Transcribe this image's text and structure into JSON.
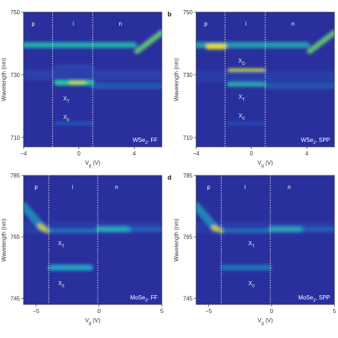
{
  "figure": {
    "panels": [
      {
        "id": "a",
        "panel_label": "",
        "material_label": "WSe₂, FF",
        "regions": [
          "p",
          "i",
          "n"
        ],
        "region_x": [
          -3.3,
          -0.4,
          3.0
        ],
        "xlim": [
          -4,
          6
        ],
        "ylim": [
          707,
          750
        ],
        "xticks": [
          -4,
          0,
          4
        ],
        "yticks": [
          710,
          730,
          750
        ],
        "xlabel": "V_g (V)",
        "ylabel": "Wavelength (nm)",
        "dashed_x": [
          -1.9,
          1.0
        ],
        "annotations": [
          {
            "text": "X_T",
            "x": -0.9,
            "y": 722.5
          },
          {
            "text": "X_0",
            "x": -0.9,
            "y": 716.5
          }
        ],
        "bands": [
          {
            "x0": -4,
            "x1": 4.0,
            "y0": 739.5,
            "y1": 739.5,
            "w": 0.85,
            "a": 0.85,
            "c": "#21c2ad"
          },
          {
            "x0": 4.2,
            "x1": 6.0,
            "y0": 737.5,
            "y1": 743.5,
            "w": 0.8,
            "a": 0.85,
            "c": "#6bd46e"
          },
          {
            "x0": -1.6,
            "x1": 0.9,
            "y0": 727.5,
            "y1": 727.5,
            "w": 0.8,
            "a": 0.95,
            "c": "#22d2a0"
          },
          {
            "x0": -0.6,
            "x1": 0.4,
            "y0": 727.5,
            "y1": 727.5,
            "w": 0.5,
            "a": 0.9,
            "c": "#c8e23c"
          },
          {
            "x0": 1.0,
            "x1": 6.0,
            "y0": 726.5,
            "y1": 726.5,
            "w": 0.9,
            "a": 0.45,
            "c": "#1d8fc5"
          },
          {
            "x0": -4,
            "x1": 6.0,
            "y0": 730.0,
            "y1": 730.0,
            "w": 1.6,
            "a": 0.25,
            "c": "#2c6fd0"
          },
          {
            "x0": -1.6,
            "x1": 0.9,
            "y0": 714.5,
            "y1": 714.5,
            "w": 0.6,
            "a": 0.45,
            "c": "#1a7fd0"
          },
          {
            "x0": -1.6,
            "x1": 0.9,
            "y0": 732.5,
            "y1": 732.5,
            "w": 0.7,
            "a": 0.3,
            "c": "#2c7ad4"
          }
        ]
      },
      {
        "id": "b",
        "panel_label": "b",
        "material_label": "WSe₂, SPP",
        "regions": [
          "p",
          "i",
          "n"
        ],
        "region_x": [
          -3.3,
          -0.4,
          3.0
        ],
        "xlim": [
          -4,
          6
        ],
        "ylim": [
          707,
          750
        ],
        "xticks": [
          -4,
          0,
          4
        ],
        "yticks": [
          710,
          730,
          750
        ],
        "xlabel": "V_g (V)",
        "ylabel": "Wavelength (nm)",
        "dashed_x": [
          -1.9,
          1.0
        ],
        "annotations": [
          {
            "text": "X_D",
            "x": -0.7,
            "y": 734.5
          },
          {
            "text": "X_T",
            "x": -0.7,
            "y": 723.0
          },
          {
            "text": "X_0",
            "x": -0.7,
            "y": 717.0
          }
        ],
        "bands": [
          {
            "x0": -4,
            "x1": 4.0,
            "y0": 739.5,
            "y1": 739.5,
            "w": 0.9,
            "a": 0.8,
            "c": "#1fb8b0"
          },
          {
            "x0": -3.1,
            "x1": -2.0,
            "y0": 739.0,
            "y1": 739.0,
            "w": 0.8,
            "a": 0.95,
            "c": "#f2e21a"
          },
          {
            "x0": 4.2,
            "x1": 6.0,
            "y0": 737.5,
            "y1": 743.5,
            "w": 0.8,
            "a": 0.85,
            "c": "#6bd46e"
          },
          {
            "x0": -1.6,
            "x1": 0.9,
            "y0": 731.5,
            "y1": 731.5,
            "w": 0.45,
            "a": 0.95,
            "c": "#d9ea3a"
          },
          {
            "x0": -1.6,
            "x1": 0.9,
            "y0": 727.0,
            "y1": 727.0,
            "w": 0.7,
            "a": 0.85,
            "c": "#28c0b0"
          },
          {
            "x0": 1.0,
            "x1": 6.0,
            "y0": 726.5,
            "y1": 726.5,
            "w": 0.9,
            "a": 0.4,
            "c": "#1d8fc5"
          },
          {
            "x0": -4,
            "x1": 6.0,
            "y0": 729.5,
            "y1": 729.5,
            "w": 1.6,
            "a": 0.22,
            "c": "#2c6fd0"
          },
          {
            "x0": -1.6,
            "x1": 0.9,
            "y0": 714.5,
            "y1": 714.5,
            "w": 0.5,
            "a": 0.35,
            "c": "#1a7fd0"
          }
        ]
      },
      {
        "id": "c",
        "panel_label": "",
        "material_label": "MoSe₂, FF",
        "regions": [
          "p",
          "i",
          "n"
        ],
        "region_x": [
          -5.0,
          -2.1,
          1.4
        ],
        "xlim": [
          -6,
          5
        ],
        "ylim": [
          743,
          785
        ],
        "xticks": [
          -5,
          0,
          5
        ],
        "yticks": [
          745,
          765,
          785
        ],
        "xlabel": "V_g (V)",
        "ylabel": "Wavelength (nm)",
        "dashed_x": [
          -4.0,
          -0.1
        ],
        "annotations": [
          {
            "text": "X_T",
            "x": -3.0,
            "y": 763.0
          },
          {
            "text": "X_0",
            "x": -3.0,
            "y": 750.0
          }
        ],
        "bands": [
          {
            "x0": -6.0,
            "x1": -4.5,
            "y0": 775.0,
            "y1": 768.0,
            "w": 1.2,
            "a": 0.7,
            "c": "#20a9c2"
          },
          {
            "x0": -4.7,
            "x1": -4.1,
            "y0": 768.5,
            "y1": 767.0,
            "w": 0.8,
            "a": 0.95,
            "c": "#f2e21a"
          },
          {
            "x0": -4.0,
            "x1": -0.2,
            "y0": 767.0,
            "y1": 767.0,
            "w": 0.7,
            "a": 0.55,
            "c": "#1b9fc4"
          },
          {
            "x0": 0.0,
            "x1": 2.3,
            "y0": 767.5,
            "y1": 767.5,
            "w": 0.9,
            "a": 0.9,
            "c": "#29c3b4"
          },
          {
            "x0": 2.3,
            "x1": 5.0,
            "y0": 767.5,
            "y1": 767.5,
            "w": 0.7,
            "a": 0.45,
            "c": "#1a8fc6"
          },
          {
            "x0": -3.8,
            "x1": -0.7,
            "y0": 755.0,
            "y1": 755.0,
            "w": 0.9,
            "a": 0.85,
            "c": "#1fb6c6"
          },
          {
            "x0": -6.0,
            "x1": 5.0,
            "y0": 768.0,
            "y1": 768.0,
            "w": 1.8,
            "a": 0.2,
            "c": "#2c6fd0"
          }
        ]
      },
      {
        "id": "d",
        "panel_label": "d",
        "material_label": "MoSe₂, SPP",
        "regions": [
          "p",
          "i",
          "n"
        ],
        "region_x": [
          -5.0,
          -2.1,
          1.4
        ],
        "xlim": [
          -6,
          5
        ],
        "ylim": [
          743,
          785
        ],
        "xticks": [
          -5,
          0,
          5
        ],
        "yticks": [
          745,
          765,
          785
        ],
        "xlabel": "V_g (V)",
        "ylabel": "Wavelength (nm)",
        "dashed_x": [
          -4.0,
          -0.1
        ],
        "annotations": [
          {
            "text": "X_T",
            "x": -1.6,
            "y": 763.0
          },
          {
            "text": "X_0",
            "x": -1.6,
            "y": 750.0
          }
        ],
        "bands": [
          {
            "x0": -6.0,
            "x1": -4.5,
            "y0": 775.0,
            "y1": 768.0,
            "w": 1.2,
            "a": 0.7,
            "c": "#20a9c2"
          },
          {
            "x0": -4.6,
            "x1": -4.0,
            "y0": 768.0,
            "y1": 767.0,
            "w": 0.8,
            "a": 0.95,
            "c": "#f2e21a"
          },
          {
            "x0": -4.0,
            "x1": -0.2,
            "y0": 767.0,
            "y1": 767.0,
            "w": 0.7,
            "a": 0.5,
            "c": "#1b9fc4"
          },
          {
            "x0": 0.0,
            "x1": 2.3,
            "y0": 767.5,
            "y1": 767.5,
            "w": 0.9,
            "a": 0.85,
            "c": "#29c3b4"
          },
          {
            "x0": 2.3,
            "x1": 5.0,
            "y0": 767.5,
            "y1": 767.5,
            "w": 0.7,
            "a": 0.45,
            "c": "#1a8fc6"
          },
          {
            "x0": -3.8,
            "x1": -0.2,
            "y0": 755.0,
            "y1": 755.0,
            "w": 0.9,
            "a": 0.6,
            "c": "#1a9fc6"
          },
          {
            "x0": -6.0,
            "x1": 5.0,
            "y0": 768.0,
            "y1": 768.0,
            "w": 1.8,
            "a": 0.2,
            "c": "#2c6fd0"
          }
        ]
      }
    ],
    "colors": {
      "background": "#2a2f9e",
      "dashed": "#ffffff",
      "text": "#333333"
    }
  }
}
